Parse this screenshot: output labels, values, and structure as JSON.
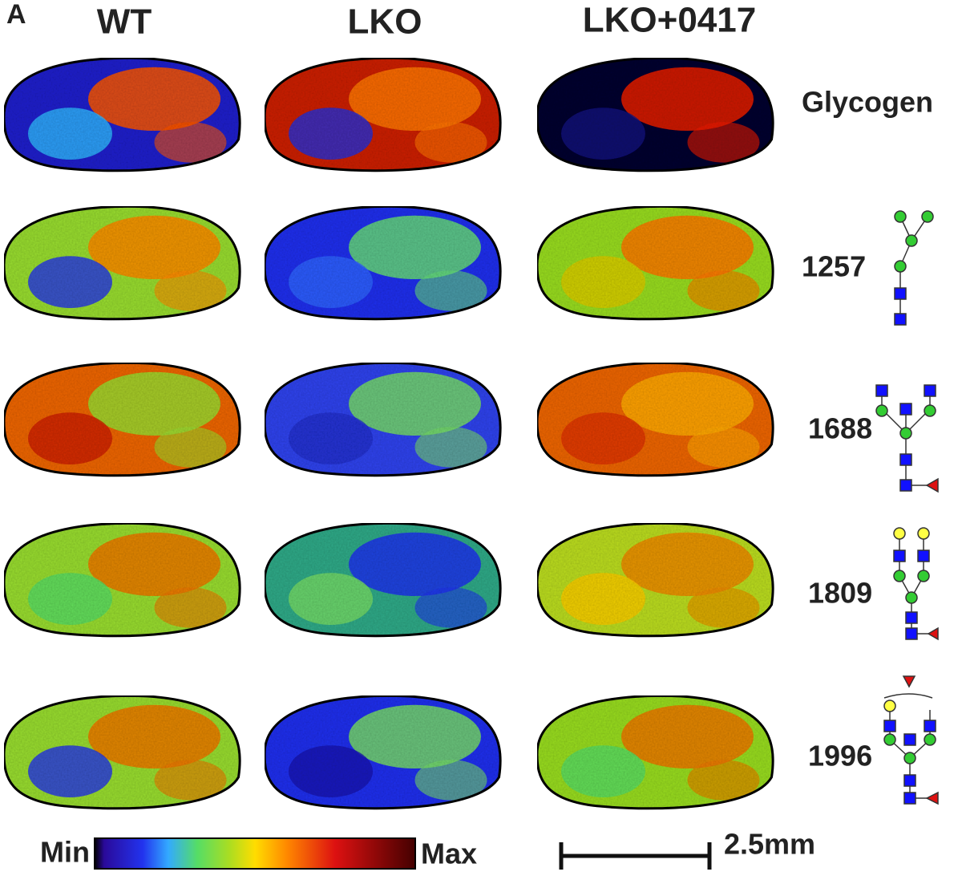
{
  "panel_label": "A",
  "columns": [
    "WT",
    "LKO",
    "LKO+0417"
  ],
  "rows": [
    "Glycogen",
    "1257",
    "1688",
    "1809",
    "1996"
  ],
  "colorbar": {
    "min_label": "Min",
    "max_label": "Max"
  },
  "scale_bar": {
    "label": "2.5mm"
  }
}
